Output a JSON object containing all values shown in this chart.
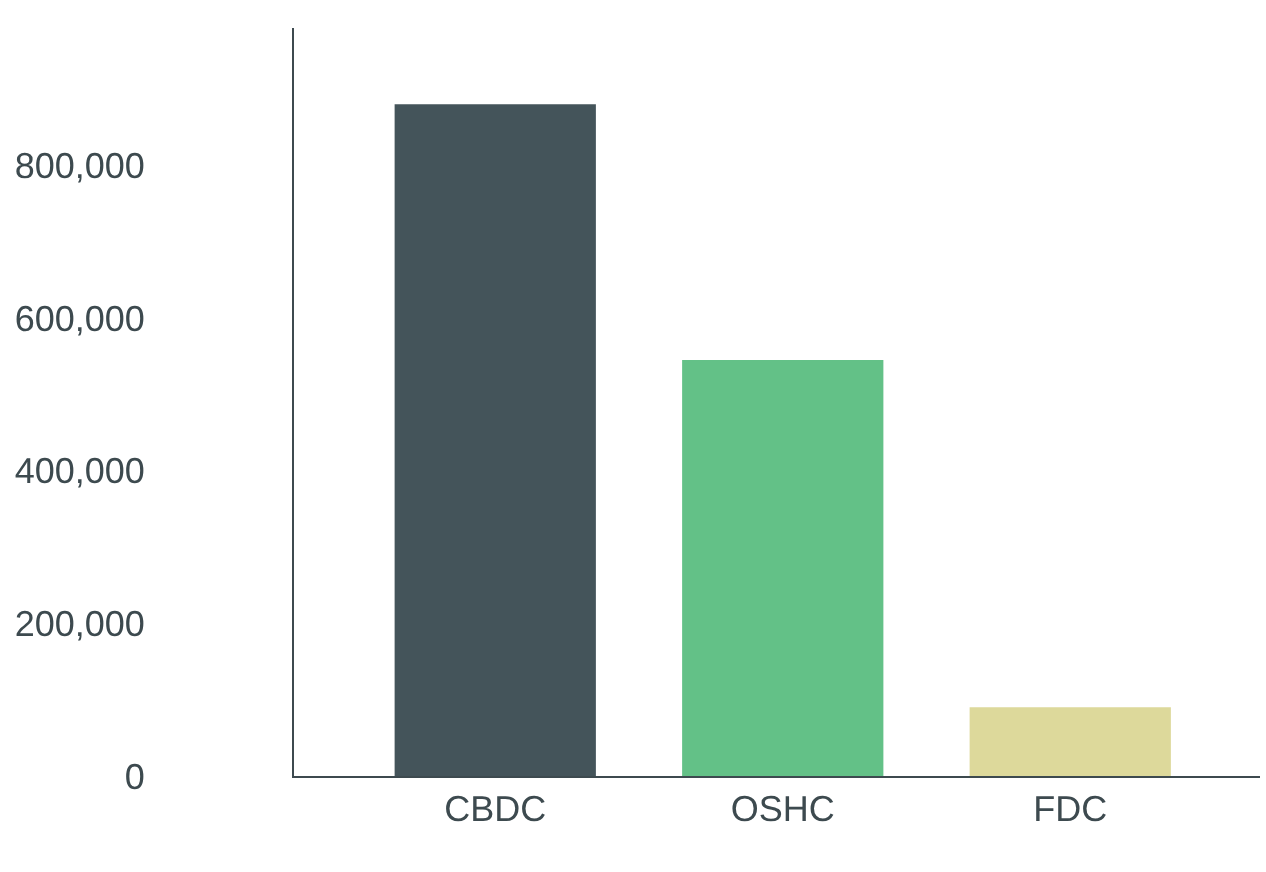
{
  "chart_data": {
    "type": "bar",
    "categories": [
      "CBDC",
      "OSHC",
      "FDC"
    ],
    "values": [
      880000,
      545000,
      90000
    ],
    "colors": [
      "#44545a",
      "#63c187",
      "#ddd99b"
    ],
    "ylim": [
      0,
      980000
    ],
    "yticks": [
      0,
      {
        "value": 200000,
        "label": "200,000"
      },
      {
        "value": 400000,
        "label": "400,000"
      },
      {
        "value": 600000,
        "label": "600,000"
      },
      {
        "value": 800000,
        "label": "800,000"
      }
    ],
    "grid": false,
    "legend": false
  }
}
